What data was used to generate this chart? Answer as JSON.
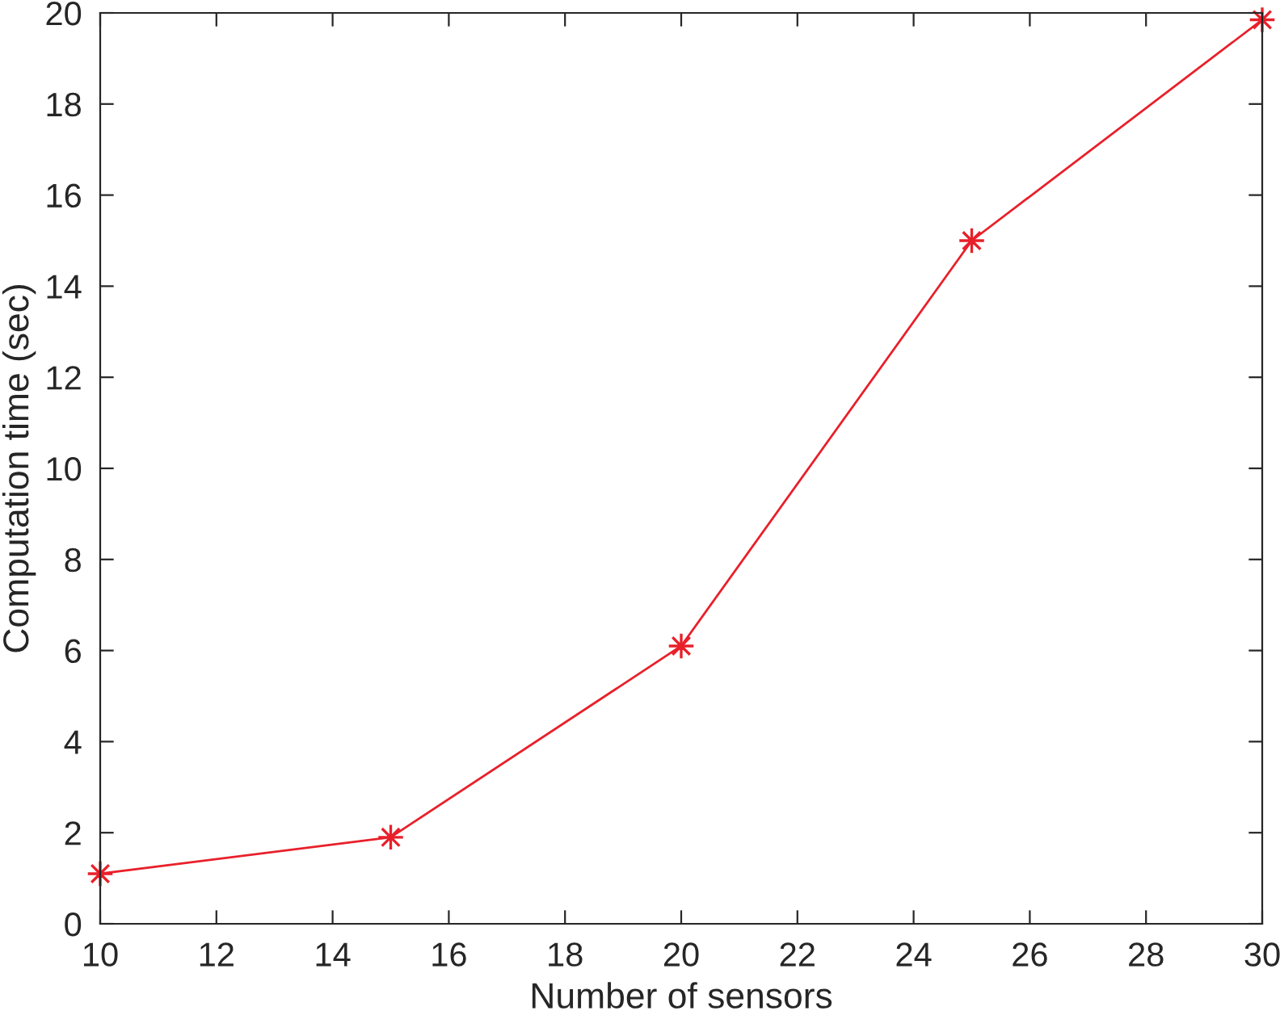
{
  "chart_data": {
    "type": "line",
    "xlabel": "Number of sensors",
    "ylabel": "Computation time (sec)",
    "x": [
      10,
      15,
      20,
      25,
      30
    ],
    "series": [
      {
        "color": "#e8202a",
        "values": [
          1.1,
          1.9,
          6.1,
          15.0,
          19.85
        ]
      }
    ],
    "xlim": [
      10,
      30
    ],
    "xticks": [
      10,
      12,
      14,
      16,
      18,
      20,
      22,
      24,
      26,
      28,
      30
    ],
    "ylim": [
      0,
      20
    ],
    "yticks": [
      0,
      2,
      4,
      6,
      8,
      10,
      12,
      14,
      16,
      18,
      20
    ],
    "grid": false,
    "marker": "cross",
    "line_style": "solid"
  }
}
